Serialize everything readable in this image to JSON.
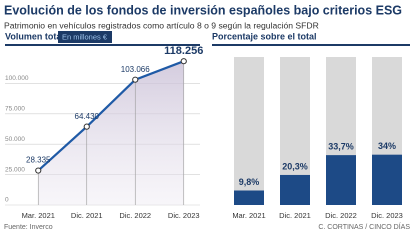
{
  "header": {
    "title": "Evolución de los fondos de inversión españoles bajo criterios ESG",
    "subtitle": "Patrimonio en vehículos registrados como artículo 8 o 9 según la regulación SFDR"
  },
  "chart_data": [
    {
      "type": "line",
      "title": "Volumen total",
      "subtitle": "En millones €",
      "categories": [
        "Mar. 2021",
        "Dic. 2021",
        "Dic. 2022",
        "Dic. 2023"
      ],
      "values": [
        28335,
        64430,
        103066,
        118256
      ],
      "value_labels": [
        "28.335",
        "64.430",
        "103.066",
        "118.256"
      ],
      "color": "#1f5aa6",
      "ylim": [
        0,
        125000
      ],
      "yticks": [
        0,
        {
          "value": 25000,
          "label": "25.000"
        },
        {
          "value": 50000,
          "label": "50.000"
        },
        {
          "value": 75000,
          "label": "75.000"
        },
        {
          "value": 100000,
          "label": "100.000"
        }
      ],
      "grid": true
    },
    {
      "type": "bar",
      "title": "Porcentaje sobre el total",
      "categories": [
        "Mar. 2021",
        "Dic. 2021",
        "Dic. 2022",
        "Dic. 2023"
      ],
      "values": [
        9.8,
        20.3,
        33.7,
        34
      ],
      "value_labels": [
        "9,8%",
        "20,3%",
        "33,7%",
        "34%"
      ],
      "color": "#1d4a86",
      "ylim": [
        0,
        100
      ]
    }
  ],
  "footer": {
    "source": "Fuente: Inverco",
    "credit": "C. CORTINAS / CINCO DÍAS"
  }
}
